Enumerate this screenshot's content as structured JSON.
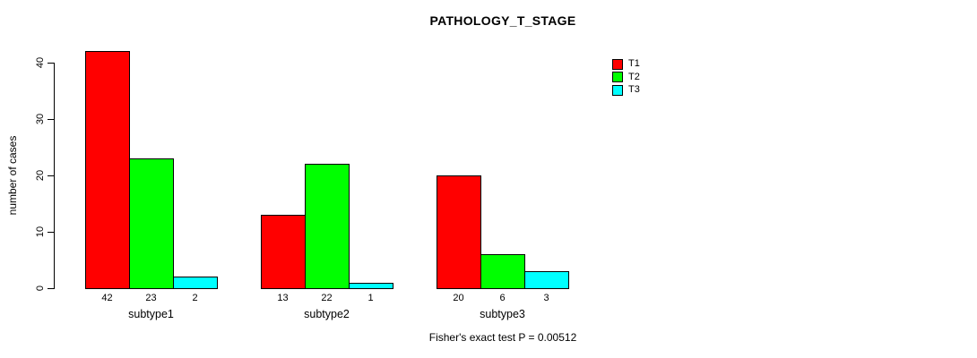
{
  "chart_data": {
    "type": "bar",
    "title": "PATHOLOGY_T_STAGE",
    "xlabel": "",
    "ylabel": "number of cases",
    "ylim": [
      0,
      40
    ],
    "yticks": [
      0,
      10,
      20,
      30,
      40
    ],
    "categories": [
      "subtype1",
      "subtype2",
      "subtype3"
    ],
    "series": [
      {
        "name": "T1",
        "color": "#ff0000",
        "values": [
          42,
          13,
          20
        ]
      },
      {
        "name": "T2",
        "color": "#00ff00",
        "values": [
          23,
          22,
          6
        ]
      },
      {
        "name": "T3",
        "color": "#00ffff",
        "values": [
          2,
          1,
          3
        ]
      }
    ],
    "bar_value_labels": [
      [
        42,
        23,
        2
      ],
      [
        13,
        22,
        1
      ],
      [
        20,
        6,
        3
      ]
    ],
    "legend_position": "top-right",
    "grid": false,
    "annotation": "Fisher's exact test P = 0.00512"
  }
}
